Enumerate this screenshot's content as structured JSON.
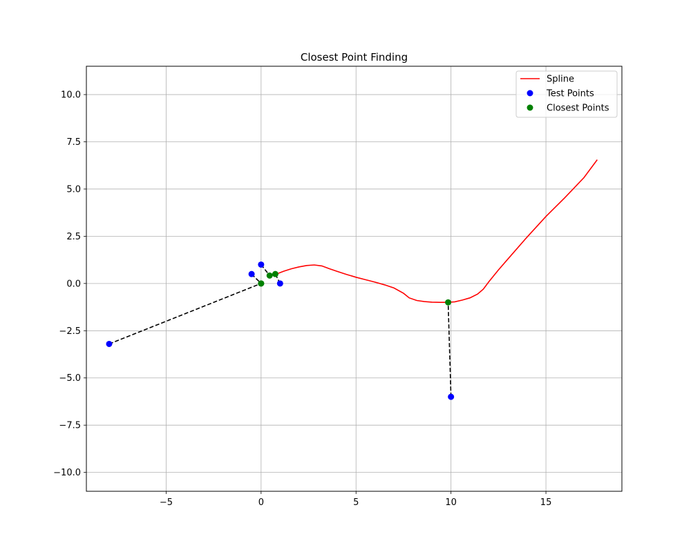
{
  "chart_data": {
    "type": "line",
    "title": "Closest Point Finding",
    "xlabel": "",
    "ylabel": "",
    "xlim": [
      -9.2,
      19.0
    ],
    "ylim": [
      -11.0,
      11.5
    ],
    "x_ticks": [
      -5,
      0,
      5,
      10,
      15
    ],
    "y_ticks": [
      -10.0,
      -7.5,
      -5.0,
      -2.5,
      0.0,
      2.5,
      5.0,
      7.5,
      10.0
    ],
    "x_tick_labels": [
      "−5",
      "0",
      "5",
      "10",
      "15"
    ],
    "y_tick_labels": [
      "−10.0",
      "−7.5",
      "−5.0",
      "−2.5",
      "0.0",
      "2.5",
      "5.0",
      "7.5",
      "10.0"
    ],
    "grid": true,
    "legend_position": "top-right",
    "series": [
      {
        "name": "Spline",
        "kind": "line",
        "color": "#ff0000",
        "points": [
          [
            0.4,
            0.4
          ],
          [
            0.8,
            0.5
          ],
          [
            1.2,
            0.65
          ],
          [
            1.6,
            0.78
          ],
          [
            2.0,
            0.88
          ],
          [
            2.4,
            0.95
          ],
          [
            2.8,
            0.98
          ],
          [
            3.2,
            0.93
          ],
          [
            3.6,
            0.78
          ],
          [
            4.0,
            0.64
          ],
          [
            4.5,
            0.48
          ],
          [
            5.0,
            0.33
          ],
          [
            5.5,
            0.2
          ],
          [
            6.0,
            0.07
          ],
          [
            6.5,
            -0.07
          ],
          [
            7.0,
            -0.24
          ],
          [
            7.5,
            -0.52
          ],
          [
            7.8,
            -0.76
          ],
          [
            8.2,
            -0.9
          ],
          [
            8.6,
            -0.96
          ],
          [
            9.0,
            -0.99
          ],
          [
            9.4,
            -1.0
          ],
          [
            9.8,
            -1.0
          ],
          [
            10.2,
            -0.97
          ],
          [
            10.6,
            -0.88
          ],
          [
            11.0,
            -0.76
          ],
          [
            11.4,
            -0.56
          ],
          [
            11.7,
            -0.3
          ],
          [
            12.0,
            0.1
          ],
          [
            12.5,
            0.72
          ],
          [
            13.0,
            1.3
          ],
          [
            14.0,
            2.45
          ],
          [
            15.0,
            3.55
          ],
          [
            16.0,
            4.55
          ],
          [
            17.0,
            5.6
          ],
          [
            17.7,
            6.55
          ]
        ]
      },
      {
        "name": "Test Points",
        "kind": "scatter",
        "color": "#0000ff",
        "points": [
          [
            0.0,
            1.0
          ],
          [
            -0.5,
            0.5
          ],
          [
            1.0,
            0.0
          ],
          [
            -8.0,
            -3.2
          ],
          [
            10.0,
            -6.0
          ]
        ]
      },
      {
        "name": "Closest Points",
        "kind": "scatter",
        "color": "#008000",
        "points": [
          [
            0.45,
            0.42
          ],
          [
            0.0,
            0.0
          ],
          [
            0.75,
            0.5
          ],
          [
            0.0,
            0.0
          ],
          [
            9.85,
            -1.0
          ]
        ]
      }
    ],
    "connector_color": "#000000"
  }
}
